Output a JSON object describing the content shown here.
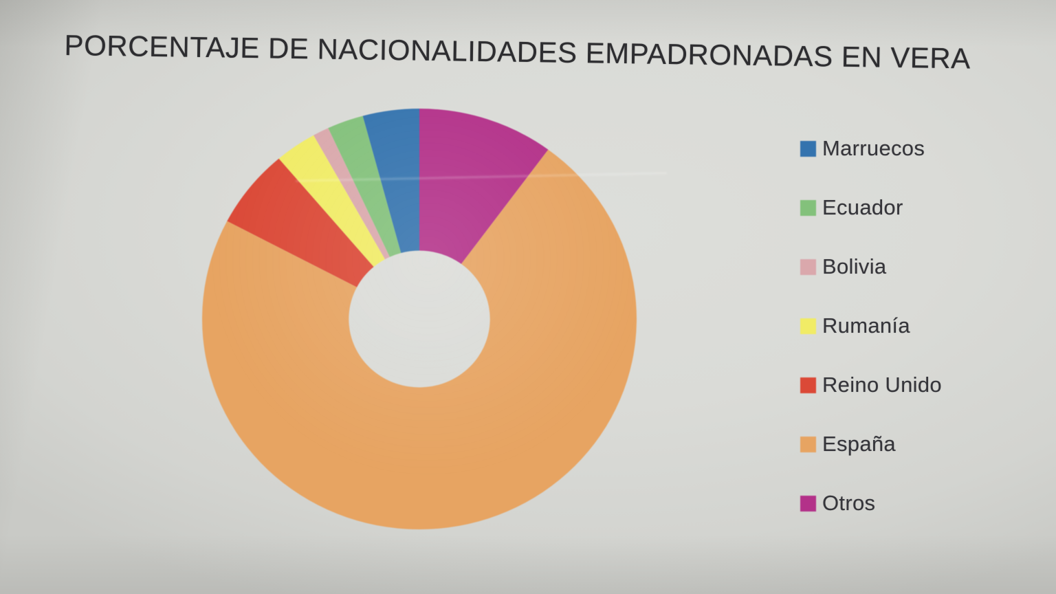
{
  "chart_data": {
    "type": "pie",
    "variant": "donut",
    "title": "PORCENTAJE DE NACIONALIDADES EMPADRONADAS EN VERA",
    "unit": "percent",
    "legend_position": "right",
    "start_angle_deg": 0,
    "direction": "counterclockwise",
    "inner_radius_ratio": 0.325,
    "categories": [
      "Marruecos",
      "Ecuador",
      "Bolivia",
      "Rumanía",
      "Reino Unido",
      "España",
      "Otros"
    ],
    "values": [
      4.2,
      2.7,
      1.2,
      3.1,
      6.1,
      72.6,
      10.1
    ],
    "series": [
      {
        "label": "Marruecos",
        "value": 4.2,
        "color": "#3473ae"
      },
      {
        "label": "Ecuador",
        "value": 2.7,
        "color": "#83c17b"
      },
      {
        "label": "Bolivia",
        "value": 1.2,
        "color": "#daa8ac"
      },
      {
        "label": "Rumanía",
        "value": 3.1,
        "color": "#f1ec66"
      },
      {
        "label": "Reino Unido",
        "value": 6.1,
        "color": "#db4937"
      },
      {
        "label": "España",
        "value": 72.6,
        "color": "#e7a462"
      },
      {
        "label": "Otros",
        "value": 10.1,
        "color": "#b33189"
      }
    ]
  }
}
